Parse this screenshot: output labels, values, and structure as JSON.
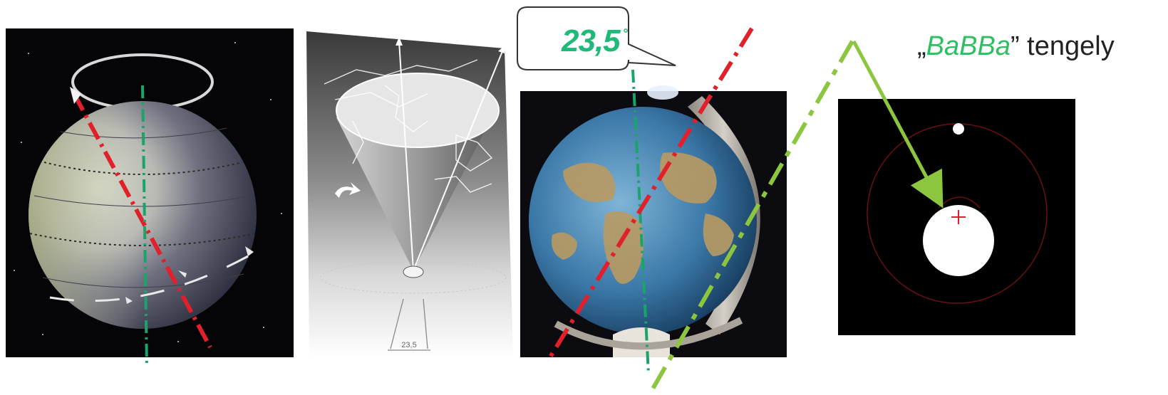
{
  "callout": {
    "value": "23,5",
    "unit": "°"
  },
  "axis_label": {
    "open_quote": "„",
    "name": "BaBBa",
    "close_quote": "”",
    "suffix": " tengely"
  },
  "cone_sketch": {
    "bottom_label": "23,5"
  },
  "colors": {
    "tilted_axis": "#e0202a",
    "vertical_axis": "#1aa46a",
    "babba_axis": "#8cc63f",
    "callout_text": "#1fb97a"
  }
}
